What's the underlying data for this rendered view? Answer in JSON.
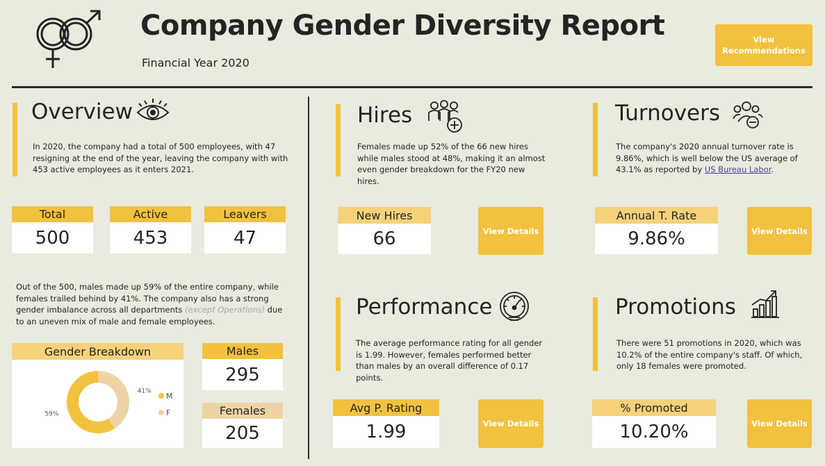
{
  "header": {
    "title": "Company Gender Diversity Report",
    "subtitle": "Financial Year 2020",
    "recommendations_button": "View Recommendations"
  },
  "overview": {
    "title": "Overview",
    "text": "In 2020, the company had a total of 500 employees, with 47 resigning at the end of the year, leaving the company with with 453 active employees as it enters 2021.",
    "cards": [
      {
        "label": "Total",
        "value": "500"
      },
      {
        "label": "Active",
        "value": "453"
      },
      {
        "label": "Leavers",
        "value": "47"
      }
    ],
    "text2_before": "Out of the 500, males made up 59% of the entire company, while females trailed behind by 41%. The company also has a strong gender imbalance across all departments ",
    "text2_italic": "(except Operations)",
    "text2_after": " due to an uneven mix of male and female employees.",
    "gender_breakdown_title": "Gender Breakdown",
    "males_label": "Males",
    "males_value": "295",
    "females_label": "Females",
    "females_value": "205"
  },
  "chart_data": {
    "type": "pie",
    "title": "Gender Breakdown",
    "labels": [
      "M",
      "F"
    ],
    "values": [
      59,
      41
    ],
    "value_labels": [
      "59%",
      "41%"
    ],
    "colors": [
      "#f2c13e",
      "#edd4a4"
    ],
    "donut": true,
    "legend": "right"
  },
  "hires": {
    "title": "Hires",
    "text": "Females made up 52% of the 66 new hires while males stood at 48%, making it an almost even gender breakdown for the FY20 new hires.",
    "card_label": "New Hires",
    "card_value": "66",
    "button": "View Details"
  },
  "turnovers": {
    "title": "Turnovers",
    "text_before": "The company's 2020 annual turnover rate is 9.86%, which is well below the US average of 43.1% as reported by ",
    "link": "US Bureau Labor",
    "text_after": ".",
    "card_label": "Annual T. Rate",
    "card_value": "9.86%",
    "button": "View Details"
  },
  "performance": {
    "title": "Performance",
    "text": "The average performance rating for all gender is 1.99. However, females performed better than males by an overall difference of 0.17 points.",
    "card_label": "Avg P. Rating",
    "card_value": "1.99",
    "button": "View Details"
  },
  "promotions": {
    "title": "Promotions",
    "text": "There were 51 promotions in 2020, which was 10.2% of the entire company's staff. Of which, only 18 females were promoted.",
    "card_label": "% Promoted",
    "card_value": "10.20%",
    "button": "View Details"
  },
  "icons": {
    "logo": "gender-symbols-icon",
    "overview": "eye-icon",
    "hires": "add-group-icon",
    "turnovers": "remove-group-icon",
    "performance": "speedometer-icon",
    "promotions": "growth-chart-icon"
  }
}
